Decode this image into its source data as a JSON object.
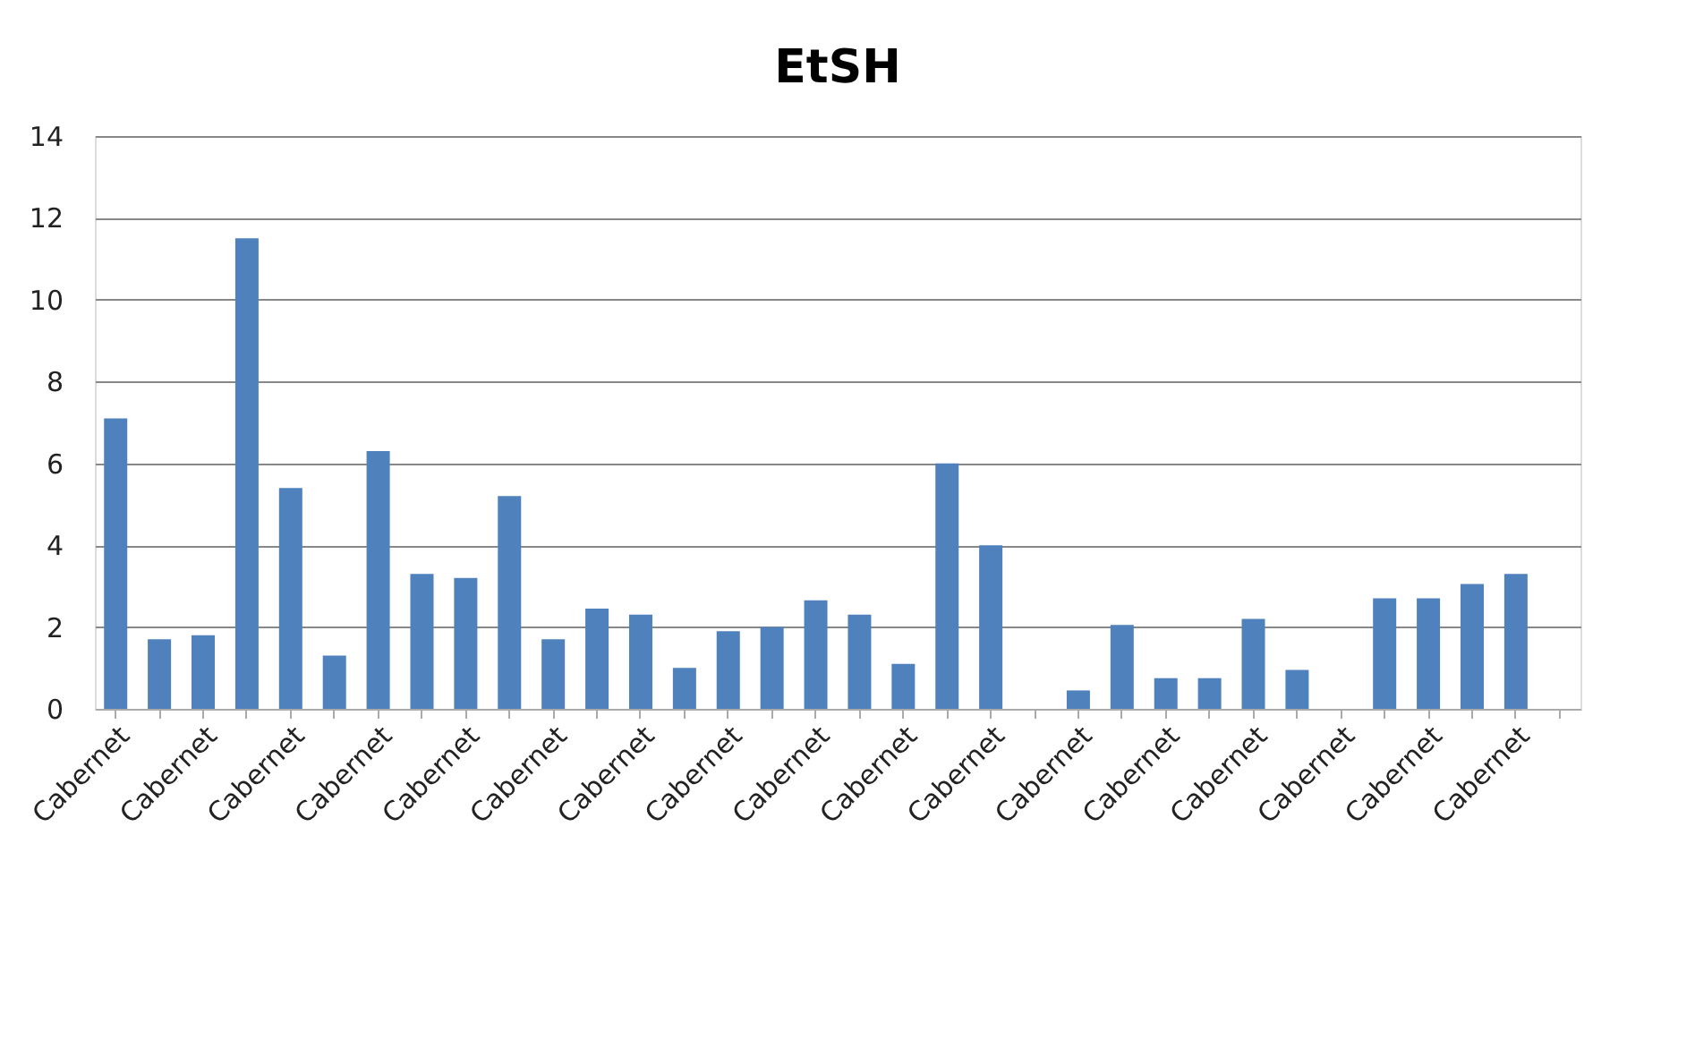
{
  "chart_data": {
    "type": "bar",
    "title": "EtSH",
    "categories": [
      "Cabernet",
      null,
      "Cabernet",
      null,
      "Cabernet",
      null,
      "Cabernet",
      null,
      "Cabernet",
      null,
      "Cabernet",
      null,
      "Cabernet",
      null,
      "Cabernet",
      null,
      "Cabernet",
      null,
      "Cabernet",
      null,
      "Cabernet",
      null,
      "Cabernet",
      null,
      "Cabernet",
      null,
      "Cabernet",
      null,
      "Cabernet",
      null,
      "Cabernet",
      null,
      "Cabernet",
      null
    ],
    "values": [
      7.1,
      1.7,
      1.8,
      11.5,
      5.4,
      1.3,
      6.3,
      3.3,
      3.2,
      5.2,
      1.7,
      2.45,
      2.3,
      1.0,
      1.9,
      2.0,
      2.65,
      2.3,
      1.1,
      6.0,
      4.0,
      null,
      0.45,
      2.05,
      0.75,
      0.75,
      2.2,
      0.95,
      null,
      2.7,
      2.7,
      3.05,
      3.3,
      null
    ],
    "color": "#4f81bd",
    "ylim": [
      0,
      14
    ],
    "yticks": [
      0,
      2,
      4,
      6,
      8,
      10,
      12,
      14
    ],
    "grid": "y"
  }
}
